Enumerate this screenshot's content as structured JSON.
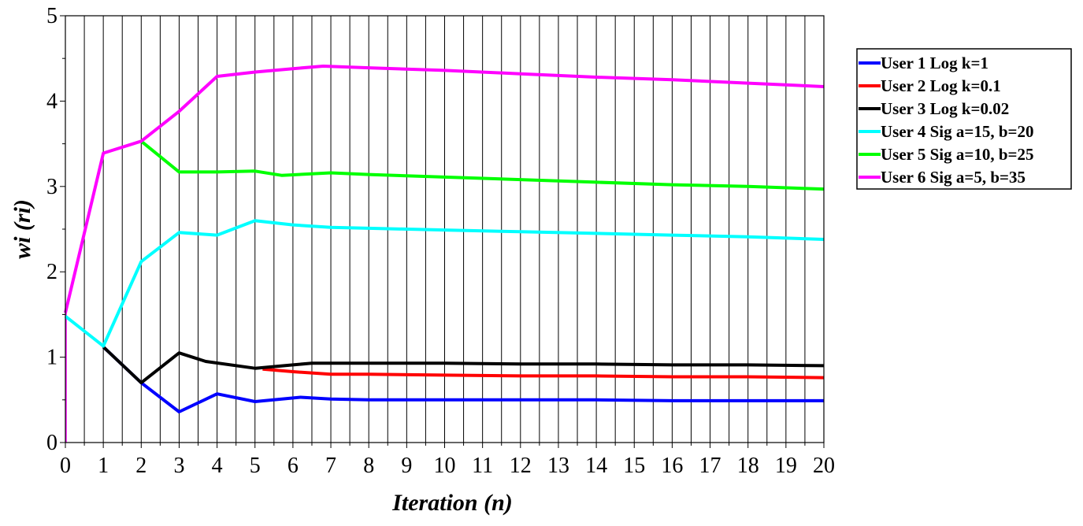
{
  "chart_data": {
    "type": "line",
    "title": "",
    "xlabel": "Iteration (n)",
    "ylabel": "wi (ri)",
    "xlim": [
      0,
      20
    ],
    "ylim": [
      0,
      5
    ],
    "x_ticks": [
      "0",
      "1",
      "2",
      "3",
      "4",
      "5",
      "6",
      "7",
      "8",
      "9",
      "10",
      "11",
      "12",
      "13",
      "14",
      "15",
      "16",
      "17",
      "18",
      "19",
      "20"
    ],
    "y_ticks": [
      "0",
      "1",
      "2",
      "3",
      "4",
      "5"
    ],
    "grid": "vertical",
    "legend_position": "right",
    "series": [
      {
        "name": "User 1 Log k=1",
        "color": "#0000ff",
        "points": [
          [
            1,
            1.12
          ],
          [
            2,
            0.7
          ],
          [
            3,
            0.36
          ],
          [
            4,
            0.57
          ],
          [
            5,
            0.48
          ],
          [
            6.2,
            0.53
          ],
          [
            7,
            0.51
          ],
          [
            8,
            0.5
          ],
          [
            10,
            0.5
          ],
          [
            12,
            0.5
          ],
          [
            14,
            0.5
          ],
          [
            16,
            0.49
          ],
          [
            18,
            0.49
          ],
          [
            20,
            0.49
          ]
        ]
      },
      {
        "name": "User 2 Log k=0.1",
        "color": "#ff0000",
        "points": [
          [
            5.2,
            0.86
          ],
          [
            6,
            0.83
          ],
          [
            7,
            0.8
          ],
          [
            8,
            0.8
          ],
          [
            10,
            0.79
          ],
          [
            12,
            0.78
          ],
          [
            14,
            0.78
          ],
          [
            16,
            0.77
          ],
          [
            18,
            0.77
          ],
          [
            20,
            0.76
          ]
        ]
      },
      {
        "name": "User 3 Log k=0.02",
        "color": "#000000",
        "points": [
          [
            1,
            1.12
          ],
          [
            2,
            0.7
          ],
          [
            3,
            1.05
          ],
          [
            3.7,
            0.95
          ],
          [
            5,
            0.87
          ],
          [
            6,
            0.91
          ],
          [
            6.5,
            0.93
          ],
          [
            8,
            0.93
          ],
          [
            10,
            0.93
          ],
          [
            12,
            0.92
          ],
          [
            14,
            0.92
          ],
          [
            16,
            0.91
          ],
          [
            18,
            0.91
          ],
          [
            20,
            0.9
          ]
        ]
      },
      {
        "name": "User 4 Sig a=15, b=20",
        "color": "#00ffff",
        "points": [
          [
            0,
            1.48
          ],
          [
            1,
            1.13
          ],
          [
            2,
            2.12
          ],
          [
            3,
            2.46
          ],
          [
            4,
            2.43
          ],
          [
            5,
            2.6
          ],
          [
            6,
            2.55
          ],
          [
            7,
            2.52
          ],
          [
            8,
            2.51
          ],
          [
            10,
            2.49
          ],
          [
            12,
            2.47
          ],
          [
            14,
            2.45
          ],
          [
            16,
            2.43
          ],
          [
            18,
            2.41
          ],
          [
            20,
            2.38
          ]
        ]
      },
      {
        "name": "User 5 Sig a=10, b=25",
        "color": "#00ff00",
        "points": [
          [
            2,
            3.53
          ],
          [
            3,
            3.17
          ],
          [
            4,
            3.17
          ],
          [
            5,
            3.18
          ],
          [
            5.7,
            3.13
          ],
          [
            7,
            3.16
          ],
          [
            8,
            3.14
          ],
          [
            10,
            3.11
          ],
          [
            12,
            3.08
          ],
          [
            14,
            3.05
          ],
          [
            16,
            3.02
          ],
          [
            18,
            3.0
          ],
          [
            20,
            2.97
          ]
        ]
      },
      {
        "name": "User 6 Sig a=5, b=35",
        "color": "#ff00ff",
        "points": [
          [
            0,
            1.52
          ],
          [
            1,
            3.39
          ],
          [
            2,
            3.53
          ],
          [
            3,
            3.88
          ],
          [
            4,
            4.29
          ],
          [
            5,
            4.34
          ],
          [
            6,
            4.38
          ],
          [
            6.8,
            4.41
          ],
          [
            8,
            4.39
          ],
          [
            10,
            4.36
          ],
          [
            12,
            4.32
          ],
          [
            14,
            4.28
          ],
          [
            16,
            4.25
          ],
          [
            18,
            4.21
          ],
          [
            20,
            4.17
          ]
        ]
      }
    ]
  }
}
